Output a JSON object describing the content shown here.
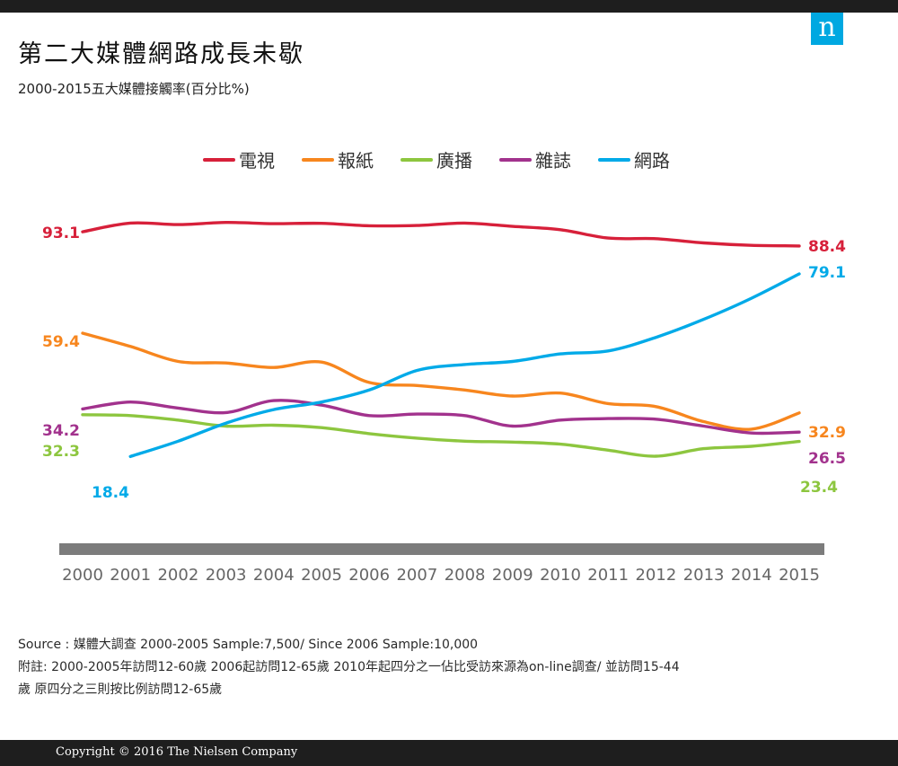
{
  "header": {
    "title": "第二大媒體網路成長未歇",
    "subtitle": "2000-2015五大媒體接觸率(百分比%)",
    "logo_letter": "n"
  },
  "chart_data": {
    "type": "line",
    "categories": [
      "2000",
      "2001",
      "2002",
      "2003",
      "2004",
      "2005",
      "2006",
      "2007",
      "2008",
      "2009",
      "2010",
      "2011",
      "2012",
      "2013",
      "2014",
      "2015"
    ],
    "ylim": [
      0,
      100
    ],
    "grid": false,
    "legend_position": "top-center",
    "series": [
      {
        "name": "電視",
        "color": "#d7203a",
        "values": [
          93.1,
          96.0,
          95.5,
          96.2,
          95.8,
          95.9,
          95.1,
          95.2,
          96.0,
          94.9,
          93.8,
          91.0,
          90.8,
          89.4,
          88.6,
          88.4
        ],
        "start_label": "93.1",
        "end_label": "88.4"
      },
      {
        "name": "報紙",
        "color": "#f7861e",
        "values": [
          59.4,
          55.0,
          50.0,
          49.5,
          48.0,
          49.8,
          43.0,
          42.0,
          40.5,
          38.5,
          39.5,
          36.0,
          35.0,
          30.0,
          27.5,
          32.9
        ],
        "start_label": "59.4",
        "end_label": "32.9"
      },
      {
        "name": "廣播",
        "color": "#8dc63f",
        "values": [
          32.3,
          32.0,
          30.5,
          28.5,
          28.8,
          28.0,
          26.0,
          24.5,
          23.5,
          23.2,
          22.5,
          20.5,
          18.5,
          21.0,
          21.8,
          23.4
        ],
        "start_label": "32.3",
        "end_label": "23.4"
      },
      {
        "name": "雜誌",
        "color": "#a2328d",
        "values": [
          34.2,
          36.5,
          34.5,
          33.0,
          37.0,
          35.5,
          32.0,
          32.5,
          32.0,
          28.5,
          30.5,
          31.0,
          30.8,
          28.5,
          26.2,
          26.5
        ],
        "start_label": "34.2",
        "end_label": "26.5"
      },
      {
        "name": "網路",
        "color": "#00aae8",
        "values": [
          null,
          18.4,
          23.5,
          29.5,
          34.0,
          36.5,
          40.5,
          47.0,
          49.0,
          50.0,
          52.5,
          53.5,
          58.0,
          64.0,
          71.0,
          79.1
        ],
        "start_label": "18.4",
        "end_label": "79.1"
      }
    ]
  },
  "notes": {
    "source": "Source : 媒體大調查  2000-2005 Sample:7,500/  Since 2006 Sample:10,000",
    "note_line1": "附註:  2000-2005年訪問12-60歲    2006起訪問12-65歲  2010年起四分之一佔比受訪來源為on-line調查/  並訪問15-44",
    "note_line2": "歲  原四分之三則按比例訪問12-65歲"
  },
  "footer": {
    "copyright": "Copyright © 2016 The Nielsen Company"
  }
}
